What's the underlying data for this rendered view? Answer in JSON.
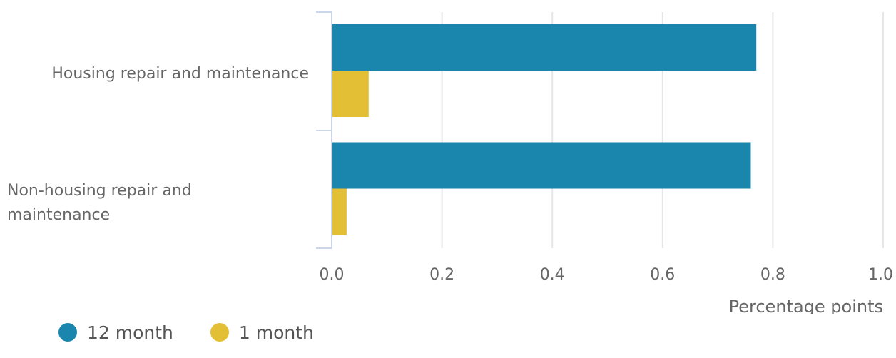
{
  "chart_data": {
    "type": "bar",
    "orientation": "horizontal",
    "categories": [
      "Housing repair and maintenance",
      "Non-housing repair and maintenance"
    ],
    "series": [
      {
        "name": "12 month",
        "color": "#1a86ad",
        "values": [
          0.77,
          0.76
        ]
      },
      {
        "name": "1 month",
        "color": "#e3bf35",
        "values": [
          0.067,
          0.027
        ]
      }
    ],
    "xlabel": "Percentage points",
    "xlim": [
      0,
      1.0
    ],
    "xticks": [
      0,
      0.2,
      0.4,
      0.6,
      0.8,
      1.0
    ],
    "tick_labels": [
      "0.0",
      "0.2",
      "0.4",
      "0.6",
      "0.8",
      "1.0"
    ],
    "grid": true,
    "legend_position": "bottom-left"
  }
}
